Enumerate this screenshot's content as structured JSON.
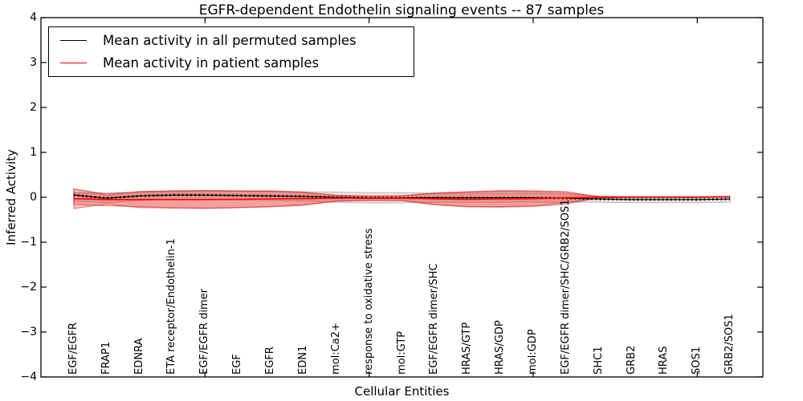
{
  "chart_data": {
    "type": "line",
    "title": "EGFR-dependent Endothelin signaling events -- 87 samples",
    "xlabel": "Cellular Entities",
    "ylabel": "Inferred Activity",
    "xlim": [
      0,
      22
    ],
    "ylim": [
      -4,
      4
    ],
    "grid": false,
    "legend_position": "upper left",
    "yticks": [
      "4",
      "3",
      "2",
      "1",
      "0",
      "−1",
      "−2",
      "−3",
      "−4"
    ],
    "ytick_values": [
      4,
      3,
      2,
      1,
      0,
      -1,
      -2,
      -3,
      -4
    ],
    "xtick_values": [
      5,
      10,
      15,
      20
    ],
    "x": [
      1,
      2,
      3,
      4,
      5,
      6,
      7,
      8,
      9,
      10,
      11,
      12,
      13,
      14,
      15,
      16,
      17,
      18,
      19,
      20,
      21
    ],
    "categories": [
      "EGF/EGFR",
      "FRAP1",
      "EDNRA",
      "ETA receptor/Endothelin-1",
      "EGF/EGFR dimer",
      "EGF",
      "EGFR",
      "EDN1",
      "mol:Ca2+",
      "response to oxidative stress",
      "mol:GTP",
      "EGF/EGFR dimer/SHC",
      "HRAS/GTP",
      "HRAS/GDP",
      "mol:GDP",
      "EGF/EGFR dimer/SHC/GRB2/SOS1",
      "SHC1",
      "GRB2",
      "HRAS",
      "SOS1",
      "GRB2/SOS1"
    ],
    "series": [
      {
        "name": "Mean activity in all permuted samples",
        "color": "#000000",
        "band_fill": "rgba(128,128,128,0.20)",
        "band_edge": "rgba(110,110,110,0.45)",
        "values": [
          0.05,
          -0.02,
          0.03,
          0.05,
          0.05,
          0.04,
          0.03,
          0.02,
          0.0,
          -0.01,
          -0.01,
          -0.01,
          -0.01,
          -0.01,
          -0.01,
          -0.02,
          -0.04,
          -0.05,
          -0.05,
          -0.05,
          -0.04
        ],
        "std": [
          0.13,
          0.1,
          0.1,
          0.1,
          0.1,
          0.1,
          0.1,
          0.1,
          0.115,
          0.115,
          0.115,
          0.1,
          0.1,
          0.1,
          0.1,
          0.09,
          0.07,
          0.07,
          0.07,
          0.07,
          0.07
        ]
      },
      {
        "name": "Mean activity in patient samples",
        "color": "#ff0000",
        "band_fill": "rgba(232,55,45,0.27)",
        "band_edge": "rgba(200,30,30,0.55)",
        "values": [
          -0.03,
          -0.05,
          -0.05,
          -0.05,
          -0.05,
          -0.045,
          -0.035,
          -0.03,
          -0.02,
          -0.02,
          -0.02,
          -0.035,
          -0.045,
          -0.035,
          -0.03,
          -0.01,
          0.0,
          0.0,
          0.0,
          0.0,
          0.01
        ],
        "std": [
          0.22,
          0.1,
          0.18,
          0.19,
          0.2,
          0.19,
          0.18,
          0.15,
          0.07,
          0.05,
          0.055,
          0.135,
          0.17,
          0.185,
          0.175,
          0.14,
          0.01,
          0.004,
          0.004,
          0.004,
          0.004
        ],
        "std2": [
          0.13,
          0.14,
          0.16,
          0.18,
          0.19,
          0.18,
          0.17,
          0.13,
          0.06,
          0.05,
          0.05,
          0.12,
          0.16,
          0.17,
          0.16,
          0.11,
          0.02,
          0.004,
          0.004,
          0.004,
          0.004
        ]
      }
    ]
  }
}
